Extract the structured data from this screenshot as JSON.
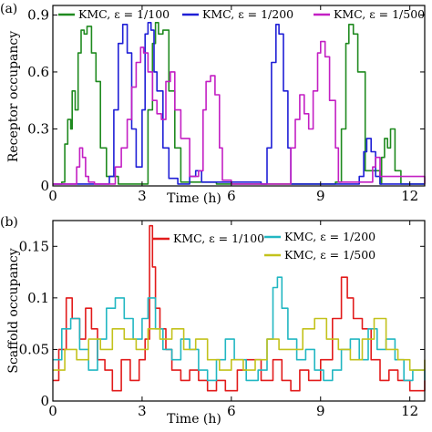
{
  "chart_data": [
    {
      "type": "line",
      "panel_label": "(a)",
      "xlabel": "Time (h)",
      "ylabel": "Receptor occupancy",
      "xlim": [
        0,
        12.5
      ],
      "ylim": [
        0,
        0.95
      ],
      "xticks": [
        0,
        3,
        6,
        9,
        12
      ],
      "yticks": [
        0,
        0.3,
        0.6,
        0.9
      ],
      "ytick_labels": [
        "0",
        "0.3",
        "0.6",
        "0.9"
      ],
      "legend_position": "top",
      "series": [
        {
          "name": "KMC, ε = 1/100",
          "color": "#1f8a1f",
          "x": [
            0,
            0.3,
            0.4,
            0.5,
            0.6,
            0.65,
            0.75,
            0.85,
            0.95,
            1.05,
            1.15,
            1.3,
            1.45,
            1.6,
            1.8,
            2.2,
            3.0,
            3.2,
            3.35,
            3.45,
            3.55,
            3.7,
            3.9,
            4.1,
            4.3,
            5.5,
            7.0,
            9.0,
            9.5,
            9.7,
            9.85,
            9.95,
            10.1,
            10.25,
            10.5,
            11.0,
            11.05,
            11.15,
            11.25,
            11.35,
            11.5,
            11.7,
            12.5
          ],
          "y": [
            0.01,
            0.02,
            0.22,
            0.35,
            0.3,
            0.5,
            0.4,
            0.7,
            0.82,
            0.8,
            0.84,
            0.7,
            0.55,
            0.2,
            0.05,
            0.01,
            0.01,
            0.4,
            0.75,
            0.86,
            0.8,
            0.82,
            0.5,
            0.2,
            0.02,
            0.01,
            0.01,
            0.01,
            0.02,
            0.3,
            0.75,
            0.85,
            0.8,
            0.6,
            0.08,
            0.01,
            0.15,
            0.25,
            0.2,
            0.3,
            0.08,
            0.01,
            0.01
          ]
        },
        {
          "name": "KMC, ε = 1/200",
          "color": "#1f1fd6",
          "x": [
            0,
            1.6,
            1.9,
            2.05,
            2.2,
            2.35,
            2.5,
            2.65,
            2.8,
            3.0,
            3.1,
            3.2,
            3.3,
            3.4,
            3.5,
            3.7,
            3.9,
            4.2,
            4.6,
            4.8,
            5.0,
            7.0,
            7.2,
            7.35,
            7.5,
            7.6,
            7.75,
            7.9,
            8.0,
            10.0,
            10.3,
            10.45,
            10.55,
            10.7,
            10.85,
            11.0,
            12.5
          ],
          "y": [
            0.01,
            0.01,
            0.05,
            0.4,
            0.75,
            0.85,
            0.7,
            0.3,
            0.1,
            0.4,
            0.8,
            0.86,
            0.82,
            0.6,
            0.5,
            0.2,
            0.04,
            0.01,
            0.05,
            0.08,
            0.02,
            0.01,
            0.2,
            0.65,
            0.85,
            0.8,
            0.5,
            0.2,
            0.01,
            0.01,
            0.05,
            0.18,
            0.25,
            0.18,
            0.05,
            0.01,
            0.01
          ]
        },
        {
          "name": "KMC, ε = 1/500",
          "color": "#c31fc3",
          "x": [
            0,
            0.6,
            0.8,
            0.9,
            1.0,
            1.1,
            1.2,
            1.4,
            1.9,
            2.1,
            2.3,
            2.5,
            2.65,
            2.8,
            2.95,
            3.05,
            3.2,
            3.35,
            3.5,
            3.65,
            3.8,
            3.95,
            4.1,
            4.3,
            4.6,
            4.9,
            5.05,
            5.15,
            5.3,
            5.45,
            5.6,
            5.7,
            6.0,
            7.8,
            8.0,
            8.15,
            8.3,
            8.45,
            8.6,
            8.75,
            8.9,
            9.0,
            9.15,
            9.3,
            9.5,
            9.6,
            10.6,
            10.75,
            10.85,
            11.0,
            12.5
          ],
          "y": [
            0.01,
            0.01,
            0.1,
            0.2,
            0.15,
            0.05,
            0.02,
            0.01,
            0.01,
            0.1,
            0.2,
            0.35,
            0.52,
            0.65,
            0.73,
            0.7,
            0.6,
            0.45,
            0.38,
            0.35,
            0.55,
            0.6,
            0.4,
            0.25,
            0.05,
            0.08,
            0.4,
            0.55,
            0.58,
            0.48,
            0.2,
            0.03,
            0.01,
            0.01,
            0.2,
            0.35,
            0.48,
            0.38,
            0.3,
            0.5,
            0.7,
            0.76,
            0.68,
            0.45,
            0.2,
            0.02,
            0.02,
            0.1,
            0.15,
            0.05,
            0.01
          ]
        }
      ]
    },
    {
      "type": "line",
      "panel_label": "(b)",
      "xlabel": "Time (h)",
      "ylabel": "Scaffold occupancy",
      "xlim": [
        0,
        12.5
      ],
      "ylim": [
        0,
        0.175
      ],
      "xticks": [
        0,
        3,
        6,
        9,
        12
      ],
      "yticks": [
        0,
        0.05,
        0.1,
        0.15
      ],
      "ytick_labels": [
        "0",
        "0.05",
        "0.1",
        "0.15"
      ],
      "legend_position": "top",
      "series": [
        {
          "name": "KMC, ε = 1/100",
          "color": "#e21b1b",
          "x": [
            0,
            0.2,
            0.45,
            0.65,
            0.9,
            1.1,
            1.3,
            1.5,
            1.75,
            2.0,
            2.3,
            2.6,
            2.9,
            3.1,
            3.25,
            3.35,
            3.45,
            3.6,
            3.8,
            4.0,
            4.3,
            4.6,
            4.9,
            5.2,
            5.5,
            5.8,
            6.2,
            6.5,
            7.0,
            7.4,
            7.7,
            8.0,
            8.3,
            8.6,
            9.0,
            9.4,
            9.7,
            9.9,
            10.1,
            10.4,
            10.7,
            11.0,
            11.3,
            11.6,
            12.0,
            12.5
          ],
          "y": [
            0.02,
            0.05,
            0.1,
            0.08,
            0.06,
            0.09,
            0.07,
            0.04,
            0.03,
            0.01,
            0.04,
            0.02,
            0.04,
            0.06,
            0.17,
            0.13,
            0.09,
            0.07,
            0.05,
            0.03,
            0.02,
            0.03,
            0.02,
            0.01,
            0.02,
            0.01,
            0.03,
            0.04,
            0.02,
            0.04,
            0.02,
            0.01,
            0.03,
            0.02,
            0.04,
            0.08,
            0.12,
            0.1,
            0.08,
            0.07,
            0.04,
            0.02,
            0.03,
            0.02,
            0.01,
            0.02
          ]
        },
        {
          "name": "KMC, ε = 1/200",
          "color": "#22b7c2",
          "x": [
            0,
            0.3,
            0.6,
            0.9,
            1.2,
            1.5,
            1.8,
            2.1,
            2.4,
            2.7,
            3.0,
            3.2,
            3.45,
            3.7,
            4.0,
            4.3,
            4.6,
            4.9,
            5.2,
            5.5,
            5.8,
            6.1,
            6.5,
            6.9,
            7.2,
            7.4,
            7.55,
            7.7,
            7.9,
            8.2,
            8.5,
            8.8,
            9.1,
            9.4,
            9.7,
            10.0,
            10.3,
            10.6,
            10.9,
            11.2,
            11.5,
            11.8,
            12.1,
            12.5
          ],
          "y": [
            0.04,
            0.07,
            0.08,
            0.05,
            0.03,
            0.06,
            0.09,
            0.1,
            0.08,
            0.06,
            0.08,
            0.1,
            0.07,
            0.05,
            0.04,
            0.06,
            0.05,
            0.03,
            0.02,
            0.04,
            0.06,
            0.04,
            0.02,
            0.03,
            0.06,
            0.11,
            0.12,
            0.09,
            0.06,
            0.04,
            0.05,
            0.03,
            0.02,
            0.03,
            0.05,
            0.06,
            0.04,
            0.07,
            0.05,
            0.06,
            0.04,
            0.02,
            0.03,
            0.02
          ]
        },
        {
          "name": "KMC, ε = 1/500",
          "color": "#c3c21c",
          "x": [
            0,
            0.4,
            0.8,
            1.2,
            1.6,
            2.0,
            2.4,
            2.8,
            3.2,
            3.6,
            4.0,
            4.4,
            4.8,
            5.2,
            5.6,
            6.0,
            6.4,
            6.8,
            7.2,
            7.6,
            8.0,
            8.4,
            8.8,
            9.2,
            9.6,
            10.0,
            10.4,
            10.8,
            11.2,
            11.6,
            12.0,
            12.5
          ],
          "y": [
            0.03,
            0.05,
            0.04,
            0.06,
            0.05,
            0.07,
            0.06,
            0.05,
            0.07,
            0.06,
            0.07,
            0.05,
            0.06,
            0.04,
            0.03,
            0.04,
            0.03,
            0.04,
            0.06,
            0.05,
            0.05,
            0.07,
            0.08,
            0.06,
            0.05,
            0.04,
            0.06,
            0.08,
            0.05,
            0.04,
            0.03,
            0.04
          ]
        }
      ]
    }
  ]
}
